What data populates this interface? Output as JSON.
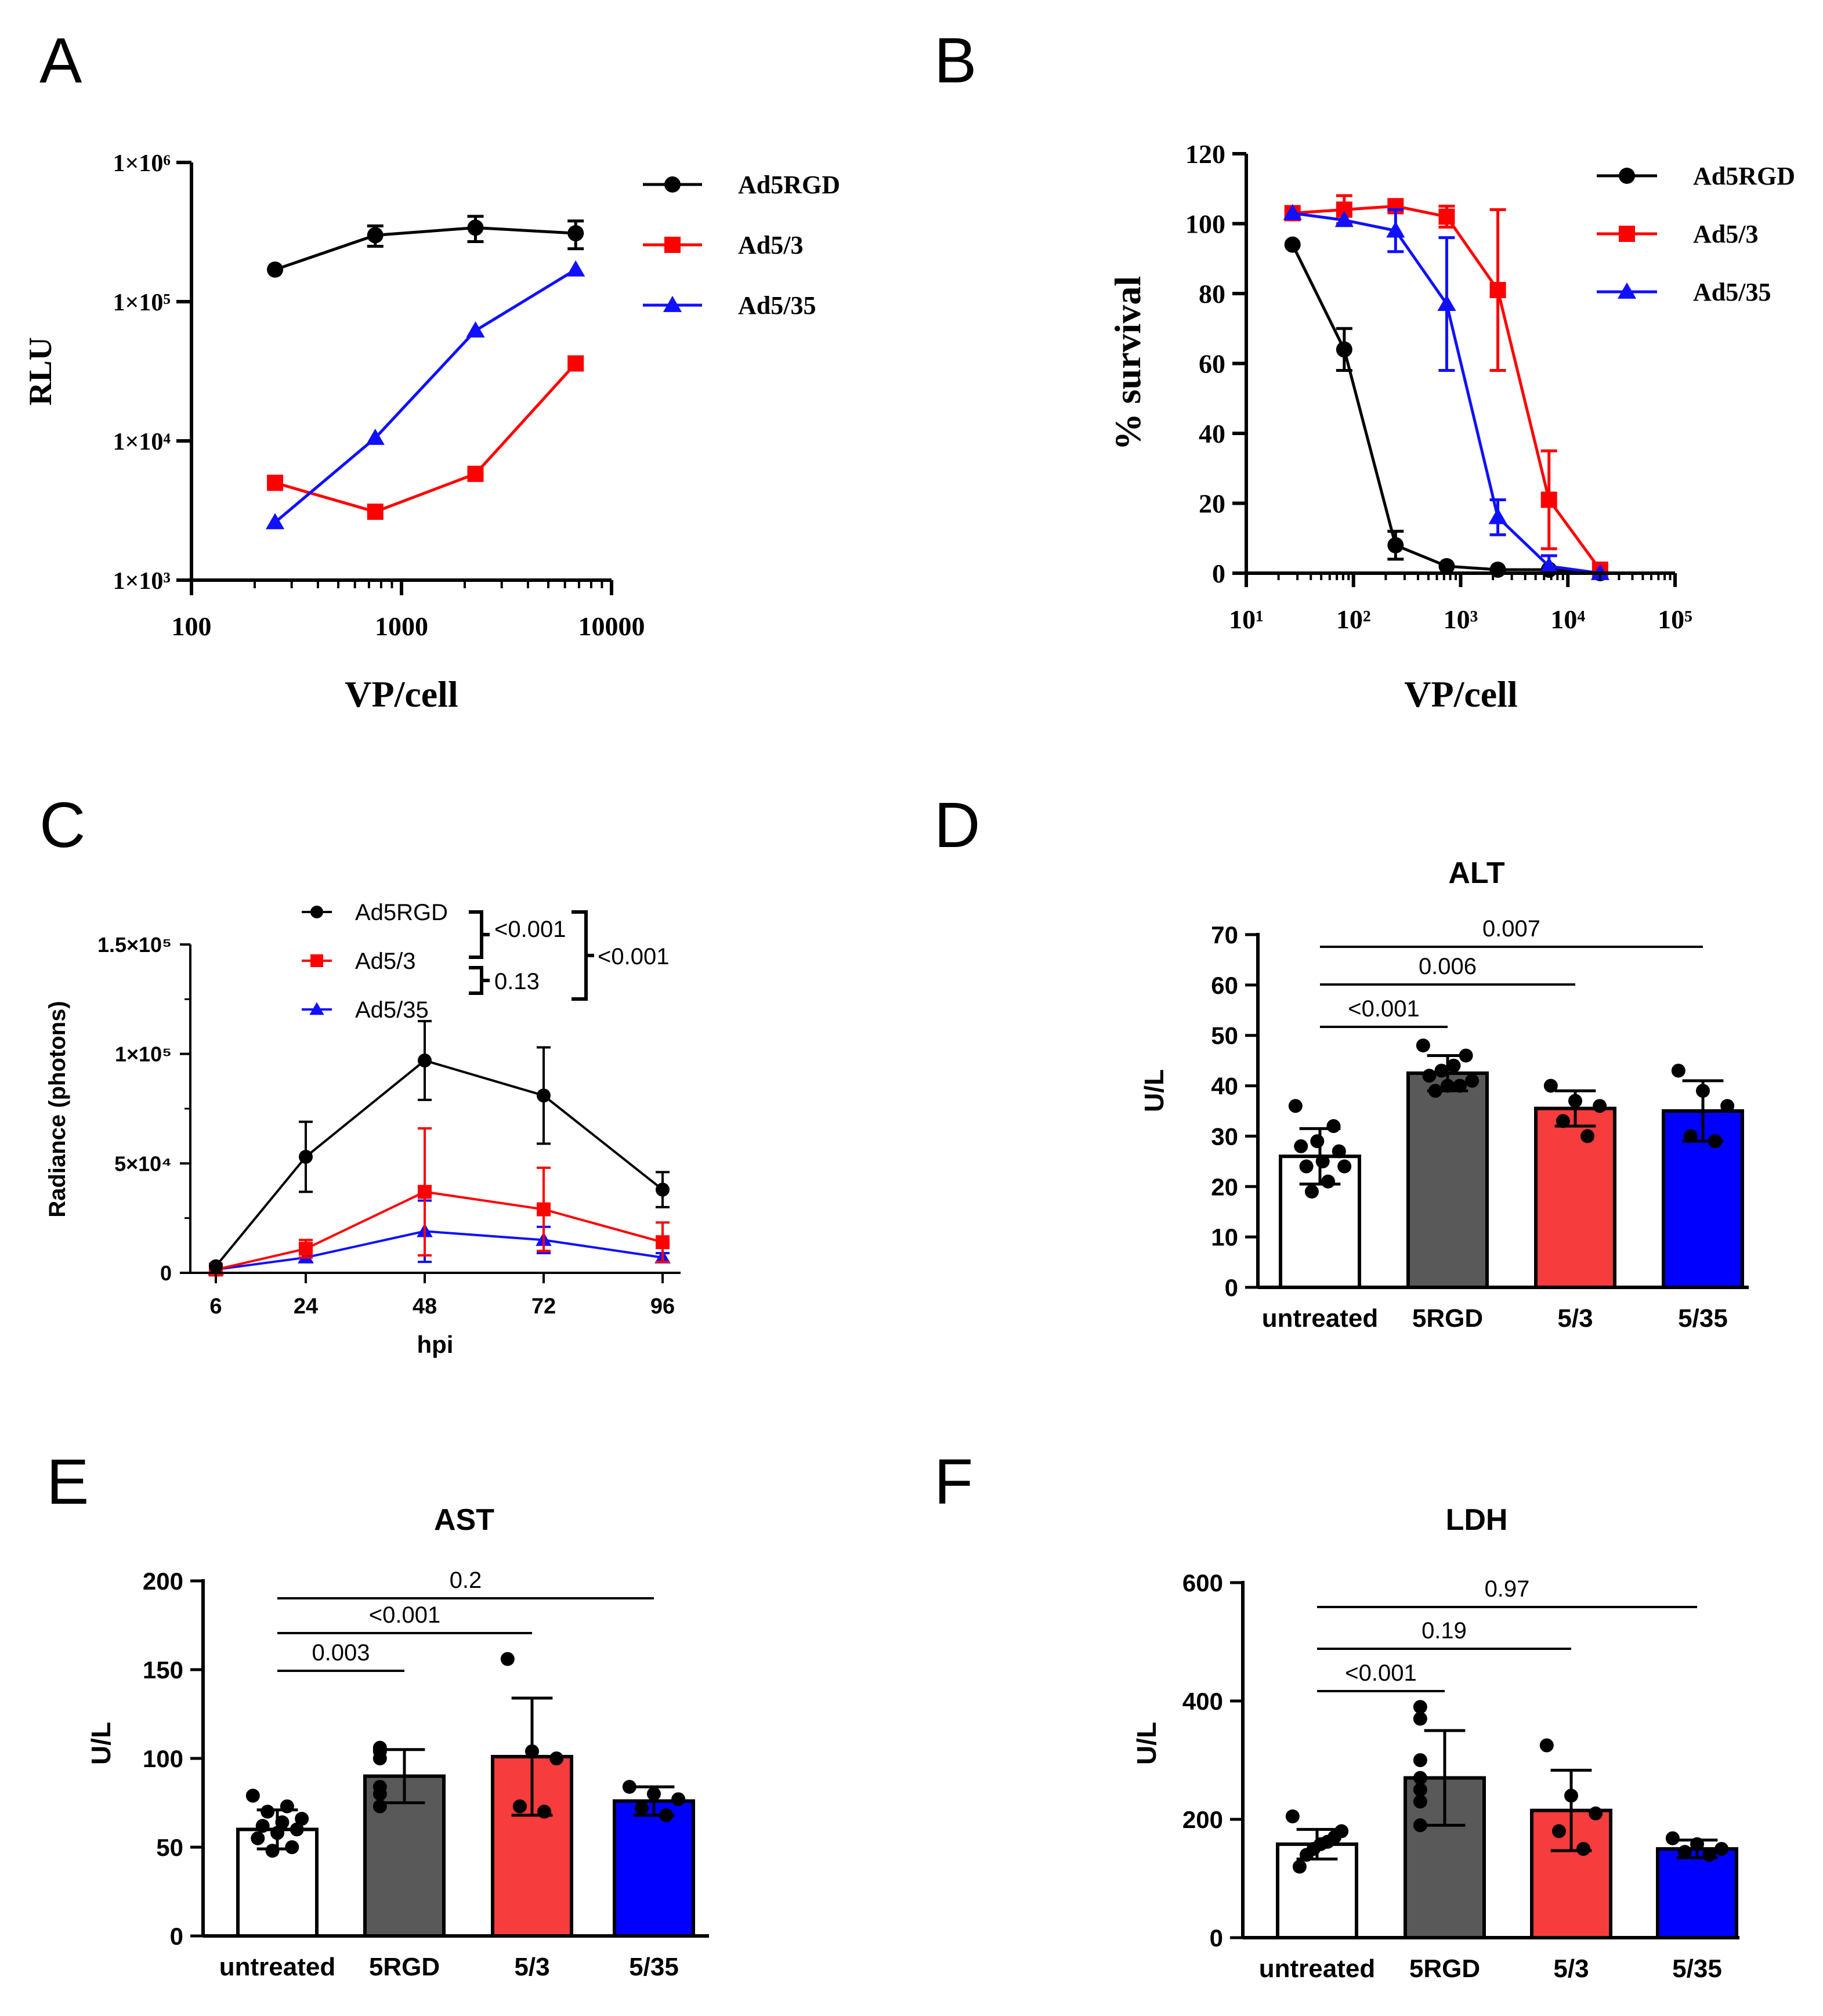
{
  "panel_labels": [
    "A",
    "B",
    "C",
    "D",
    "E",
    "F"
  ],
  "colors": {
    "Ad5RGD": "#000000",
    "Ad5/3": "#ff0000",
    "Ad5/35": "#1010ff",
    "bar_untreated": "#ffffff",
    "bar_5RGD": "#595959",
    "bar_5/3": "#f63c3c",
    "bar_5/35": "#0000ff"
  },
  "chart_data": [
    {
      "panel": "A",
      "type": "line",
      "xscale": "log",
      "yscale": "log",
      "xlabel": "VP/cell",
      "ylabel": "RLU",
      "xlim": [
        100,
        10000
      ],
      "ylim": [
        1000,
        1000000
      ],
      "xticks": [
        "100",
        "1000",
        "10000"
      ],
      "yticks": [
        "1×10³",
        "1×10⁴",
        "1×10⁵",
        "1×10⁶"
      ],
      "legend": [
        "Ad5RGD",
        "Ad5/3",
        "Ad5/35"
      ],
      "legend_position": "top-right",
      "series": [
        {
          "name": "Ad5RGD",
          "marker": "circle",
          "x": [
            250,
            750,
            2250,
            6750
          ],
          "y": [
            170000,
            300000,
            340000,
            310000
          ],
          "err": [
            0,
            50000,
            70000,
            70000
          ]
        },
        {
          "name": "Ad5/3",
          "marker": "square",
          "x": [
            250,
            750,
            2250,
            6750
          ],
          "y": [
            5000,
            3100,
            5800,
            36000
          ],
          "err": [
            0,
            0,
            500,
            0
          ]
        },
        {
          "name": "Ad5/35",
          "marker": "triangle",
          "x": [
            250,
            750,
            2250,
            6750
          ],
          "y": [
            2600,
            10500,
            62000,
            170000
          ],
          "err": [
            0,
            0,
            0,
            0
          ]
        }
      ]
    },
    {
      "panel": "B",
      "type": "line",
      "xscale": "log",
      "yscale": "linear",
      "xlabel": "VP/cell",
      "ylabel": "% survival",
      "xlim": [
        10,
        100000
      ],
      "ylim": [
        0,
        120
      ],
      "xticks": [
        "10¹",
        "10²",
        "10³",
        "10⁴",
        "10⁵"
      ],
      "yticks": [
        "0",
        "20",
        "40",
        "60",
        "80",
        "100",
        "120"
      ],
      "legend": [
        "Ad5RGD",
        "Ad5/3",
        "Ad5/35"
      ],
      "legend_position": "top-right",
      "series": [
        {
          "name": "Ad5RGD",
          "marker": "circle",
          "x": [
            27,
            82,
            247,
            741,
            2222,
            6667,
            20000
          ],
          "y": [
            94,
            64,
            8,
            2,
            1,
            1,
            0
          ],
          "err": [
            0,
            6,
            4,
            0,
            0,
            0,
            0
          ]
        },
        {
          "name": "Ad5/3",
          "marker": "square",
          "x": [
            27,
            82,
            247,
            741,
            2222,
            6667,
            20000
          ],
          "y": [
            103,
            104,
            105,
            102,
            81,
            21,
            1
          ],
          "err": [
            0,
            4,
            0,
            3,
            23,
            14,
            0
          ]
        },
        {
          "name": "Ad5/35",
          "marker": "triangle",
          "x": [
            27,
            82,
            247,
            741,
            2222,
            6667,
            20000
          ],
          "y": [
            103,
            101,
            98,
            77,
            16,
            2,
            0
          ],
          "err": [
            0,
            0,
            6,
            19,
            5,
            3,
            0
          ]
        }
      ]
    },
    {
      "panel": "C",
      "type": "line",
      "xlabel": "hpi",
      "ylabel": "Radiance (photons)",
      "categories": [
        "6",
        "24",
        "48",
        "72",
        "96"
      ],
      "ylim": [
        0,
        150000
      ],
      "yticks": [
        "0",
        "5×10⁴",
        "1×10⁵",
        "1.5×10⁵"
      ],
      "legend": [
        "Ad5RGD",
        "Ad5/3",
        "Ad5/35"
      ],
      "legend_position": "top",
      "annotations": [
        "<0.001",
        "0.13",
        "<0.001"
      ],
      "series": [
        {
          "name": "Ad5RGD",
          "marker": "circle",
          "values": [
            3000,
            53000,
            97000,
            81000,
            38000
          ],
          "err": [
            0,
            16000,
            18000,
            22000,
            8000
          ]
        },
        {
          "name": "Ad5/3",
          "marker": "square",
          "values": [
            1500,
            11000,
            37000,
            29000,
            14000
          ],
          "err": [
            0,
            4000,
            29000,
            19000,
            9000
          ]
        },
        {
          "name": "Ad5/35",
          "marker": "triangle",
          "values": [
            1500,
            7000,
            19000,
            15000,
            7000
          ],
          "err": [
            0,
            2000,
            14000,
            6000,
            2000
          ]
        }
      ]
    },
    {
      "panel": "D",
      "type": "bar",
      "title": "ALT",
      "ylabel": "U/L",
      "categories": [
        "untreated",
        "5RGD",
        "5/3",
        "5/35"
      ],
      "values": [
        26,
        42.5,
        35.5,
        35
      ],
      "errors": [
        5.5,
        3.5,
        3.5,
        6
      ],
      "ylim": [
        0,
        70
      ],
      "yticks": [
        "0",
        "10",
        "20",
        "30",
        "40",
        "50",
        "60",
        "70"
      ],
      "points": [
        [
          36,
          32,
          29,
          28,
          27,
          25,
          24,
          24,
          21,
          19
        ],
        [
          48,
          46,
          44,
          43,
          42,
          41,
          40,
          40,
          39
        ],
        [
          40,
          37,
          36,
          33,
          30
        ],
        [
          43,
          39,
          36,
          30,
          29
        ]
      ],
      "comparisons": [
        {
          "groups": [
            0,
            1
          ],
          "p": "<0.001"
        },
        {
          "groups": [
            0,
            2
          ],
          "p": "0.006"
        },
        {
          "groups": [
            0,
            3
          ],
          "p": "0.007"
        }
      ]
    },
    {
      "panel": "E",
      "type": "bar",
      "title": "AST",
      "ylabel": "U/L",
      "categories": [
        "untreated",
        "5RGD",
        "5/3",
        "5/35"
      ],
      "values": [
        60,
        90,
        101,
        76
      ],
      "errors": [
        11,
        15,
        33,
        8
      ],
      "ylim": [
        0,
        200
      ],
      "yticks": [
        "0",
        "50",
        "100",
        "150",
        "200"
      ],
      "points": [
        [
          79,
          73,
          70,
          66,
          64,
          62,
          60,
          58,
          55,
          50,
          48
        ],
        [
          106,
          105,
          104,
          100,
          84,
          80,
          73
        ],
        [
          156,
          104,
          100,
          73,
          70
        ],
        [
          84,
          80,
          77,
          72,
          68
        ]
      ],
      "comparisons": [
        {
          "groups": [
            0,
            1
          ],
          "p": "0.003"
        },
        {
          "groups": [
            0,
            2
          ],
          "p": "<0.001"
        },
        {
          "groups": [
            0,
            3
          ],
          "p": "0.2"
        }
      ]
    },
    {
      "panel": "F",
      "type": "bar",
      "title": "LDH",
      "ylabel": "U/L",
      "categories": [
        "untreated",
        "5RGD",
        "5/3",
        "5/35"
      ],
      "values": [
        158,
        270,
        215,
        150
      ],
      "errors": [
        25,
        80,
        68,
        15
      ],
      "ylim": [
        0,
        600
      ],
      "yticks": [
        "0",
        "200",
        "400",
        "600"
      ],
      "points": [
        [
          205,
          180,
          170,
          162,
          158,
          150,
          140,
          120
        ],
        [
          390,
          370,
          300,
          270,
          250,
          230,
          190
        ],
        [
          325,
          240,
          210,
          180,
          150
        ],
        [
          168,
          158,
          150,
          145,
          140
        ]
      ],
      "comparisons": [
        {
          "groups": [
            0,
            1
          ],
          "p": "<0.001"
        },
        {
          "groups": [
            0,
            2
          ],
          "p": "0.19"
        },
        {
          "groups": [
            0,
            3
          ],
          "p": "0.97"
        }
      ]
    }
  ]
}
